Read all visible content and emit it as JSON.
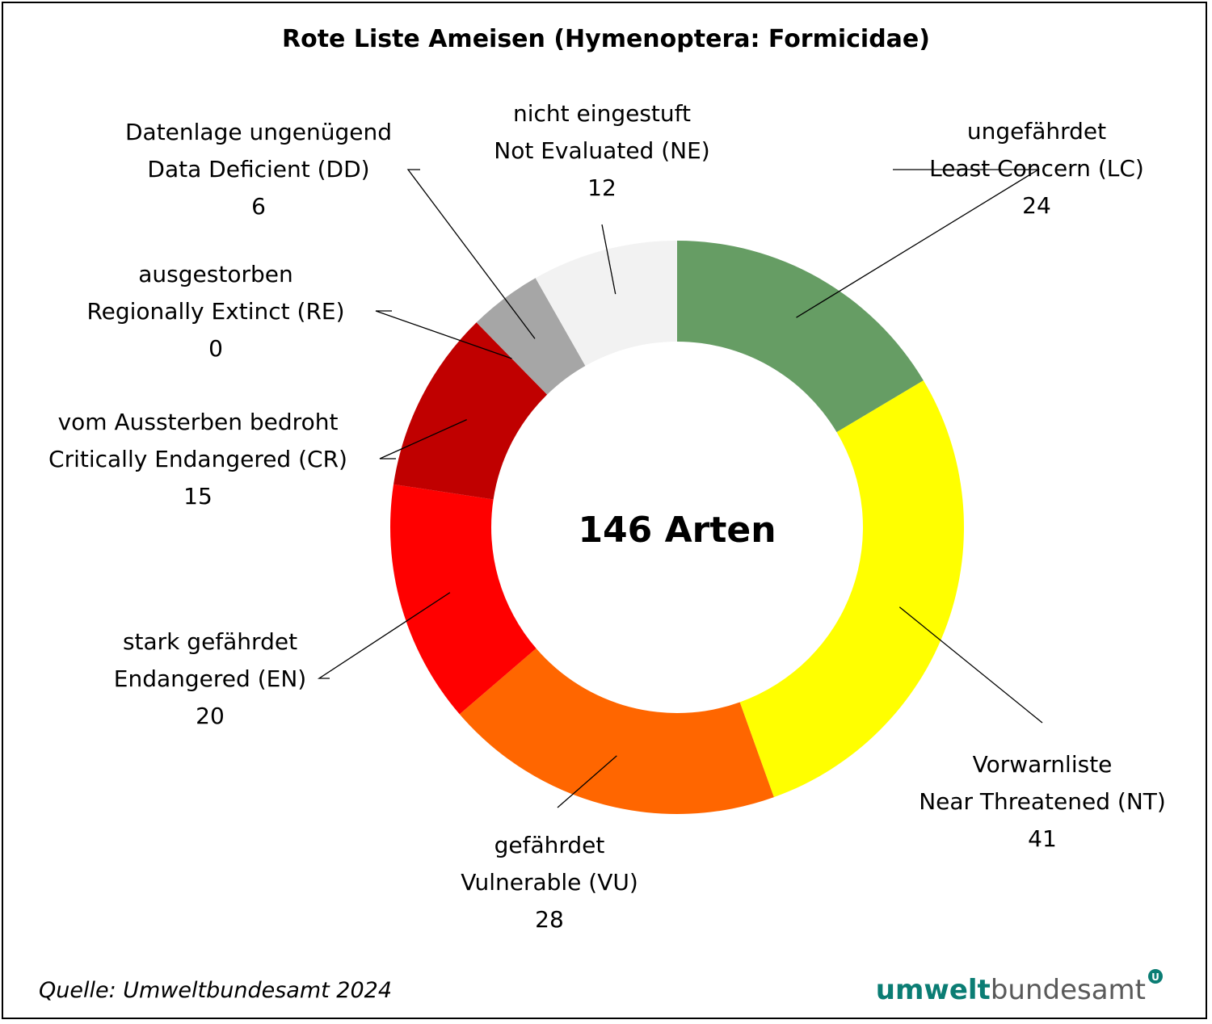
{
  "chart_data": {
    "type": "pie",
    "variant": "donut",
    "title": "Rote Liste Ameisen (Hymenoptera: Formicidae)",
    "center_label": "146 Arten",
    "categories": [
      {
        "de": "ungefährdet",
        "en": "Least Concern (LC)",
        "value": 24,
        "color": "#669d64"
      },
      {
        "de": "Vorwarnliste",
        "en": "Near Threatened (NT)",
        "value": 41,
        "color": "#ffff00"
      },
      {
        "de": "gefährdet",
        "en": "Vulnerable (VU)",
        "value": 28,
        "color": "#ff6600"
      },
      {
        "de": "stark gefährdet",
        "en": "Endangered (EN)",
        "value": 20,
        "color": "#ff0000"
      },
      {
        "de": "vom Aussterben bedroht",
        "en": "Critically Endangered (CR)",
        "value": 15,
        "color": "#c00000"
      },
      {
        "de": "ausgestorben",
        "en": "Regionally Extinct (RE)",
        "value": 0,
        "color": "#7f7f7f"
      },
      {
        "de": "Datenlage ungenügend",
        "en": "Data Deficient (DD)",
        "value": 6,
        "color": "#a6a6a6"
      },
      {
        "de": "nicht eingestuft",
        "en": "Not Evaluated (NE)",
        "value": 12,
        "color": "#f2f2f2"
      }
    ]
  },
  "footer": {
    "source": "Quelle: Umweltbundesamt 2024",
    "logo_part1": "umwelt",
    "logo_part2": "bundesamt",
    "logo_mark": "U"
  }
}
